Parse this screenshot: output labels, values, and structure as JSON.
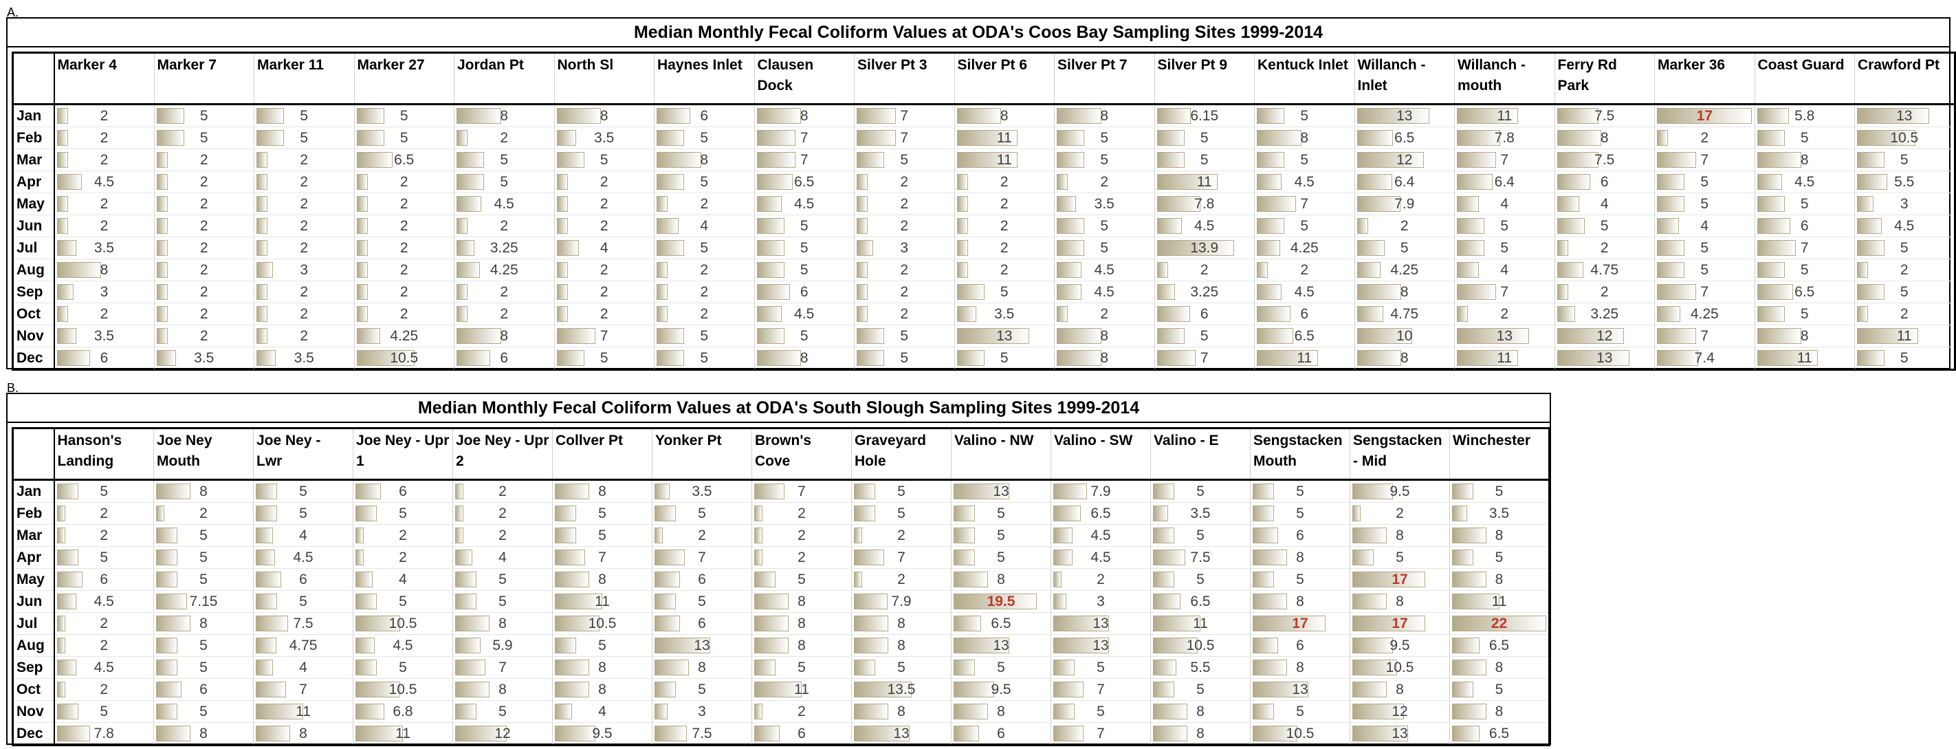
{
  "label_a": "A.",
  "table_a": {
    "title": "Median Monthly Fecal Coliform Values at ODA's Coos Bay Sampling Sites 1999-2014",
    "columns": [
      "Marker 4",
      "Marker 7",
      "Marker 11",
      "Marker 27",
      "Jordan Pt",
      "North Sl",
      "Haynes Inlet",
      "Clausen Dock",
      "Silver Pt 3",
      "Silver Pt 6",
      "Silver Pt 7",
      "Silver Pt 9",
      "Kentuck Inlet",
      "Willanch - Inlet",
      "Willanch - mouth",
      "Ferry Rd Park",
      "Marker 36",
      "Coast Guard",
      "Crawford Pt"
    ],
    "rows": [
      {
        "month": "Jan",
        "values": [
          2,
          5,
          5,
          5,
          8,
          8,
          6,
          8,
          7,
          8,
          8,
          6.15,
          5,
          13,
          11,
          7.5,
          17,
          5.8,
          13
        ]
      },
      {
        "month": "Feb",
        "values": [
          2,
          5,
          5,
          5,
          2,
          3.5,
          5,
          7,
          7,
          11,
          5,
          5,
          8,
          6.5,
          7.8,
          8,
          2,
          5,
          10.5
        ]
      },
      {
        "month": "Mar",
        "values": [
          2,
          2,
          2,
          6.5,
          5,
          5,
          8,
          7,
          5,
          11,
          5,
          5,
          5,
          12,
          7,
          7.5,
          7,
          8,
          5
        ]
      },
      {
        "month": "Apr",
        "values": [
          4.5,
          2,
          2,
          2,
          5,
          2,
          5,
          6.5,
          2,
          2,
          2,
          11,
          4.5,
          6.4,
          6.4,
          6,
          5,
          4.5,
          5.5
        ]
      },
      {
        "month": "May",
        "values": [
          2,
          2,
          2,
          2,
          4.5,
          2,
          2,
          4.5,
          2,
          2,
          3.5,
          7.8,
          7,
          7.9,
          4,
          4,
          5,
          5,
          3
        ]
      },
      {
        "month": "Jun",
        "values": [
          2,
          2,
          2,
          2,
          2,
          2,
          4,
          5,
          2,
          2,
          5,
          4.5,
          5,
          2,
          5,
          5,
          4,
          6,
          4.5
        ]
      },
      {
        "month": "Jul",
        "values": [
          3.5,
          2,
          2,
          2,
          3.25,
          4,
          5,
          5,
          3,
          2,
          5,
          13.9,
          4.25,
          5,
          5,
          2,
          5,
          7,
          5
        ]
      },
      {
        "month": "Aug",
        "values": [
          8,
          2,
          3,
          2,
          4.25,
          2,
          2,
          5,
          2,
          2,
          4.5,
          2,
          2,
          4.25,
          4,
          4.75,
          5,
          5,
          2
        ]
      },
      {
        "month": "Sep",
        "values": [
          3,
          2,
          2,
          2,
          2,
          2,
          2,
          6,
          2,
          5,
          4.5,
          3.25,
          4.5,
          8,
          7,
          2,
          7,
          6.5,
          5
        ]
      },
      {
        "month": "Oct",
        "values": [
          2,
          2,
          2,
          2,
          2,
          2,
          2,
          4.5,
          2,
          3.5,
          2,
          6,
          6,
          4.75,
          2,
          3.25,
          4.25,
          5,
          2
        ]
      },
      {
        "month": "Nov",
        "values": [
          3.5,
          2,
          2,
          4.25,
          8,
          7,
          5,
          5,
          5,
          13,
          8,
          5,
          6.5,
          10,
          13,
          12,
          7,
          8,
          11
        ]
      },
      {
        "month": "Dec",
        "values": [
          6,
          3.5,
          3.5,
          10.5,
          6,
          5,
          5,
          8,
          5,
          5,
          8,
          7,
          11,
          8,
          11,
          13,
          7.4,
          11,
          5
        ]
      }
    ],
    "highlighted": [
      [
        0,
        16
      ]
    ],
    "highlight_color": "#c0392b",
    "bar_color": "#b3aa8a"
  },
  "label_b": "B.",
  "table_b": {
    "title": "Median Monthly Fecal Coliform Values at ODA's South Slough Sampling Sites 1999-2014",
    "columns": [
      "Hanson's Landing",
      "Joe Ney Mouth",
      "Joe Ney - Lwr",
      "Joe Ney - Upr 1",
      "Joe Ney - Upr 2",
      "Collver Pt",
      "Yonker Pt",
      "Brown's Cove",
      "Graveyard Hole",
      "Valino - NW",
      "Valino - SW",
      "Valino - E",
      "Sengstacken Mouth",
      "Sengstacken - Mid",
      "Winchester"
    ],
    "rows": [
      {
        "month": "Jan",
        "values": [
          5,
          8,
          5,
          6,
          2,
          8,
          3.5,
          7,
          5,
          13,
          7.9,
          5,
          5,
          9.5,
          5
        ]
      },
      {
        "month": "Feb",
        "values": [
          2,
          2,
          5,
          5,
          2,
          5,
          5,
          2,
          5,
          5,
          6.5,
          3.5,
          5,
          2,
          3.5
        ]
      },
      {
        "month": "Mar",
        "values": [
          2,
          5,
          4,
          2,
          2,
          5,
          2,
          2,
          2,
          5,
          4.5,
          5,
          6,
          8,
          8
        ]
      },
      {
        "month": "Apr",
        "values": [
          5,
          5,
          4.5,
          2,
          4,
          7,
          7,
          2,
          7,
          5,
          4.5,
          7.5,
          8,
          5,
          5
        ]
      },
      {
        "month": "May",
        "values": [
          6,
          5,
          6,
          4,
          5,
          8,
          6,
          5,
          2,
          8,
          2,
          5,
          5,
          17,
          8
        ]
      },
      {
        "month": "Jun",
        "values": [
          4.5,
          7.15,
          5,
          5,
          5,
          11,
          5,
          8,
          7.9,
          19.5,
          3,
          6.5,
          8,
          8,
          11
        ]
      },
      {
        "month": "Jul",
        "values": [
          2,
          8,
          7.5,
          10.5,
          8,
          10.5,
          6,
          8,
          8,
          6.5,
          13,
          11,
          17,
          17,
          22
        ]
      },
      {
        "month": "Aug",
        "values": [
          2,
          5,
          4.75,
          4.5,
          5.9,
          5,
          13,
          8,
          8,
          13,
          13,
          10.5,
          6,
          9.5,
          6.5
        ]
      },
      {
        "month": "Sep",
        "values": [
          4.5,
          5,
          4,
          5,
          7,
          8,
          8,
          5,
          5,
          5,
          5,
          5.5,
          8,
          10.5,
          8
        ]
      },
      {
        "month": "Oct",
        "values": [
          2,
          6,
          7,
          10.5,
          8,
          8,
          5,
          11,
          13.5,
          9.5,
          7,
          5,
          13,
          8,
          5
        ]
      },
      {
        "month": "Nov",
        "values": [
          5,
          5,
          11,
          6.8,
          5,
          4,
          3,
          2,
          8,
          8,
          5,
          8,
          5,
          12,
          8
        ]
      },
      {
        "month": "Dec",
        "values": [
          7.8,
          8,
          8,
          11,
          12,
          9.5,
          7.5,
          6,
          13,
          6,
          7,
          8,
          10.5,
          13,
          6.5
        ]
      }
    ],
    "highlighted": [
      [
        4,
        13
      ],
      [
        5,
        9
      ],
      [
        6,
        12
      ],
      [
        6,
        13
      ],
      [
        6,
        14
      ]
    ],
    "highlight_color": "#c0392b",
    "bar_color": "#b3aa8a"
  }
}
